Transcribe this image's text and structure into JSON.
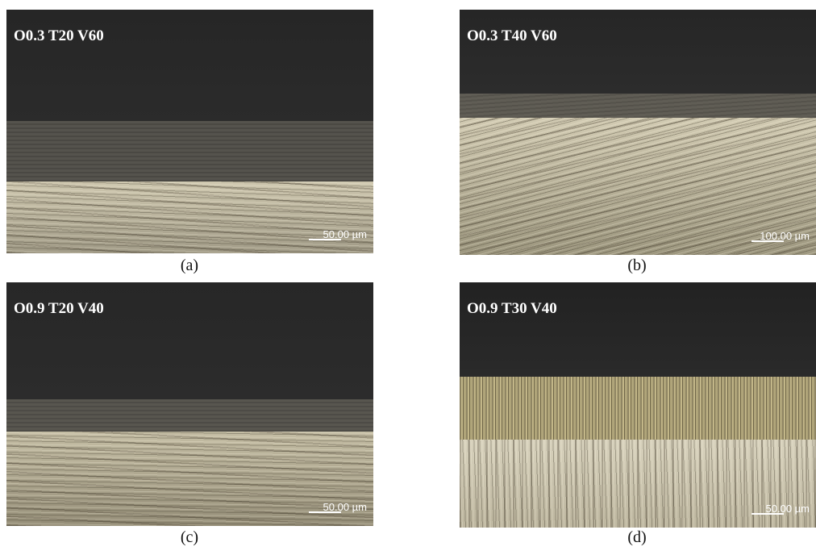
{
  "panels": [
    {
      "overlay": "O0.3 T20 V60",
      "scale": "50.00 µm",
      "caption": "(a)"
    },
    {
      "overlay": "O0.3 T40 V60",
      "scale": "100.00 µm",
      "caption": "(b)"
    },
    {
      "overlay": "O0.9 T20 V40",
      "scale": "50.00 µm",
      "caption": "(c)"
    },
    {
      "overlay": "O0.9 T30 V40",
      "scale": "50.00 µm",
      "caption": "(d)"
    }
  ]
}
